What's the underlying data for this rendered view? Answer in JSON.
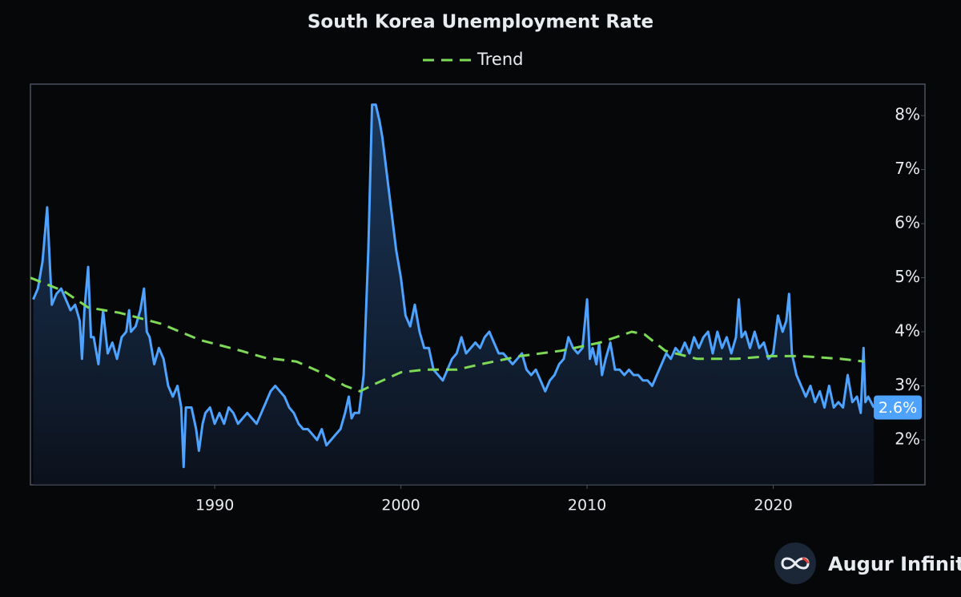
{
  "chart_data": {
    "type": "line",
    "title": "South Korea Unemployment Rate",
    "xlim": [
      1980.1,
      2028.15
    ],
    "ylim": [
      1.17,
      8.58
    ],
    "xticks": [
      1990,
      2000,
      2010,
      2020
    ],
    "yticks": [
      {
        "value": 2,
        "label": "2%"
      },
      {
        "value": 3,
        "label": "3%"
      },
      {
        "value": 4,
        "label": "4%"
      },
      {
        "value": 5,
        "label": "5%"
      },
      {
        "value": 6,
        "label": "6%"
      },
      {
        "value": 7,
        "label": "7%"
      },
      {
        "value": 8,
        "label": "8%"
      }
    ],
    "y_axis_side": "right",
    "legend": "top",
    "series": [
      {
        "color": "#4da3ff",
        "end_label": "2.6%",
        "x": [
          1980.25,
          1980.5,
          1980.75,
          1981.0,
          1981.25,
          1981.5,
          1981.75,
          1982.0,
          1982.25,
          1982.5,
          1982.75,
          1982.87,
          1983.0,
          1983.2,
          1983.35,
          1983.5,
          1983.75,
          1984.0,
          1984.25,
          1984.5,
          1984.75,
          1985.0,
          1985.25,
          1985.4,
          1985.5,
          1985.75,
          1986.0,
          1986.2,
          1986.35,
          1986.5,
          1986.75,
          1987.0,
          1987.25,
          1987.5,
          1987.75,
          1988.0,
          1988.2,
          1988.33,
          1988.45,
          1988.75,
          1989.0,
          1989.15,
          1989.35,
          1989.5,
          1989.75,
          1990.0,
          1990.25,
          1990.5,
          1990.75,
          1991.0,
          1991.25,
          1991.5,
          1991.75,
          1992.0,
          1992.25,
          1992.5,
          1992.75,
          1993.0,
          1993.25,
          1993.5,
          1993.75,
          1994.0,
          1994.25,
          1994.5,
          1994.75,
          1995.0,
          1995.25,
          1995.5,
          1995.75,
          1996.0,
          1996.25,
          1996.5,
          1996.75,
          1997.0,
          1997.2,
          1997.35,
          1997.5,
          1997.75,
          1998.0,
          1998.25,
          1998.45,
          1998.65,
          1998.85,
          1999.0,
          1999.25,
          1999.5,
          1999.75,
          2000.0,
          2000.25,
          2000.5,
          2000.75,
          2001.0,
          2001.25,
          2001.5,
          2001.75,
          2002.0,
          2002.25,
          2002.5,
          2002.75,
          2003.0,
          2003.25,
          2003.5,
          2003.75,
          2004.0,
          2004.25,
          2004.5,
          2004.75,
          2005.0,
          2005.25,
          2005.5,
          2005.75,
          2006.0,
          2006.25,
          2006.5,
          2006.75,
          2007.0,
          2007.25,
          2007.5,
          2007.75,
          2008.0,
          2008.25,
          2008.5,
          2008.75,
          2009.0,
          2009.25,
          2009.5,
          2009.75,
          2010.0,
          2010.15,
          2010.3,
          2010.5,
          2010.65,
          2010.8,
          2011.0,
          2011.25,
          2011.5,
          2011.75,
          2012.0,
          2012.25,
          2012.5,
          2012.75,
          2013.0,
          2013.25,
          2013.5,
          2013.75,
          2014.0,
          2014.25,
          2014.5,
          2014.75,
          2015.0,
          2015.25,
          2015.5,
          2015.75,
          2016.0,
          2016.25,
          2016.5,
          2016.75,
          2017.0,
          2017.25,
          2017.5,
          2017.75,
          2018.0,
          2018.15,
          2018.3,
          2018.5,
          2018.75,
          2019.0,
          2019.25,
          2019.5,
          2019.75,
          2020.0,
          2020.25,
          2020.5,
          2020.7,
          2020.85,
          2021.0,
          2021.25,
          2021.5,
          2021.75,
          2022.0,
          2022.25,
          2022.5,
          2022.75,
          2023.0,
          2023.25,
          2023.5,
          2023.75,
          2024.0,
          2024.25,
          2024.5,
          2024.7,
          2024.85,
          2024.95,
          2025.1,
          2025.4
        ],
        "values": [
          4.6,
          4.8,
          5.3,
          6.3,
          4.5,
          4.7,
          4.8,
          4.6,
          4.4,
          4.5,
          4.2,
          3.5,
          4.4,
          5.2,
          3.9,
          3.9,
          3.4,
          4.4,
          3.6,
          3.8,
          3.5,
          3.9,
          4.0,
          4.4,
          4.0,
          4.1,
          4.4,
          4.8,
          4.0,
          3.9,
          3.4,
          3.7,
          3.5,
          3.0,
          2.8,
          3.0,
          2.6,
          1.5,
          2.6,
          2.6,
          2.2,
          1.8,
          2.3,
          2.5,
          2.6,
          2.3,
          2.5,
          2.3,
          2.6,
          2.5,
          2.3,
          2.4,
          2.5,
          2.4,
          2.3,
          2.5,
          2.7,
          2.9,
          3.0,
          2.9,
          2.8,
          2.6,
          2.5,
          2.3,
          2.2,
          2.2,
          2.1,
          2.0,
          2.2,
          1.9,
          2.0,
          2.1,
          2.2,
          2.5,
          2.8,
          2.4,
          2.5,
          2.5,
          3.2,
          5.5,
          8.2,
          8.2,
          7.9,
          7.6,
          6.9,
          6.2,
          5.5,
          5.0,
          4.3,
          4.1,
          4.5,
          4.0,
          3.7,
          3.7,
          3.3,
          3.2,
          3.1,
          3.3,
          3.5,
          3.6,
          3.9,
          3.6,
          3.7,
          3.8,
          3.7,
          3.9,
          4.0,
          3.8,
          3.6,
          3.6,
          3.5,
          3.4,
          3.5,
          3.6,
          3.3,
          3.2,
          3.3,
          3.1,
          2.9,
          3.1,
          3.2,
          3.4,
          3.5,
          3.9,
          3.7,
          3.6,
          3.7,
          4.6,
          3.5,
          3.7,
          3.4,
          3.8,
          3.2,
          3.5,
          3.8,
          3.3,
          3.3,
          3.2,
          3.3,
          3.2,
          3.2,
          3.1,
          3.1,
          3.0,
          3.2,
          3.4,
          3.6,
          3.5,
          3.7,
          3.6,
          3.8,
          3.6,
          3.9,
          3.7,
          3.9,
          4.0,
          3.6,
          4.0,
          3.7,
          3.9,
          3.6,
          3.9,
          4.6,
          3.9,
          4.0,
          3.7,
          4.0,
          3.7,
          3.8,
          3.5,
          3.6,
          4.3,
          4.0,
          4.2,
          4.7,
          3.6,
          3.2,
          3.0,
          2.8,
          3.0,
          2.7,
          2.9,
          2.6,
          3.0,
          2.6,
          2.7,
          2.6,
          3.2,
          2.7,
          2.8,
          2.5,
          3.7,
          2.7,
          2.8,
          2.6
        ]
      },
      {
        "name": "Trend",
        "color": "#7ed957",
        "dashed": true,
        "x": [
          1980.1,
          1981.9,
          1983.2,
          1984.9,
          1987.1,
          1989.2,
          1991.4,
          1992.7,
          1994.4,
          1995.7,
          1997.0,
          1997.8,
          1998.7,
          2000.0,
          2001.3,
          2003.0,
          2004.3,
          2006.4,
          2008.6,
          2010.7,
          2012.4,
          2013.1,
          2014.2,
          2015.9,
          2018.0,
          2019.8,
          2021.5,
          2023.6,
          2024.9
        ],
        "values": [
          5.0,
          4.75,
          4.45,
          4.35,
          4.15,
          3.85,
          3.65,
          3.52,
          3.45,
          3.25,
          3.0,
          2.9,
          3.05,
          3.25,
          3.3,
          3.3,
          3.4,
          3.55,
          3.65,
          3.8,
          4.0,
          3.95,
          3.65,
          3.5,
          3.5,
          3.55,
          3.55,
          3.5,
          3.45
        ]
      }
    ],
    "watermark": "Augur Infinity"
  }
}
